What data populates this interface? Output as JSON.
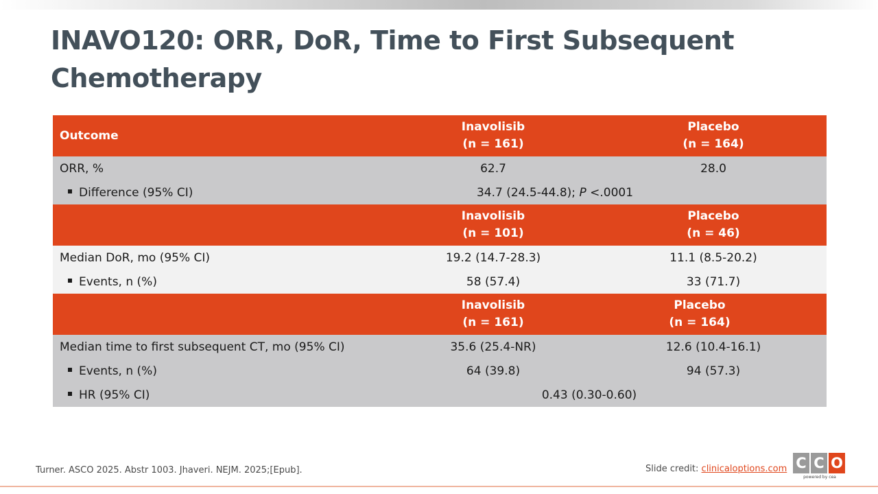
{
  "slide": {
    "title": "INAVO120: ORR, DoR, Time to First Subsequent Chemotherapy"
  },
  "table": {
    "header1": {
      "outcome": "Outcome",
      "col1_line1": "Inavolisib",
      "col1_line2": "(n = 161)",
      "col2_line1": "Placebo",
      "col2_line2": "(n = 164)"
    },
    "orr": {
      "label": "ORR, %",
      "col1": "62.7",
      "col2": "28.0"
    },
    "orr_diff": {
      "label": "Difference (95% CI)",
      "value_prefix": "34.7 (24.5-44.8); ",
      "value_p": "P",
      "value_suffix": " <.0001"
    },
    "header2": {
      "col1_line1": "Inavolisib",
      "col1_line2": "(n = 101)",
      "col2_line1": "Placebo",
      "col2_line2": "(n = 46)"
    },
    "dor": {
      "label": "Median DoR, mo (95% CI)",
      "col1": "19.2 (14.7-28.3)",
      "col2": "11.1 (8.5-20.2)"
    },
    "dor_events": {
      "label": "Events, n (%)",
      "col1": "58 (57.4)",
      "col2": "33 (71.7)"
    },
    "header3": {
      "col1_line1": "Inavolisib",
      "col1_line2": "(n = 161)",
      "col2_line1": "Placebo",
      "col2_line2": "(n = 164)"
    },
    "ttfsc": {
      "label": "Median time to first subsequent CT, mo (95% CI)",
      "col1": "35.6 (25.4-NR)",
      "col2": "12.6 (10.4-16.1)"
    },
    "ttfsc_events": {
      "label": "Events, n (%)",
      "col1": "64 (39.8)",
      "col2": "94 (57.3)"
    },
    "hr": {
      "label": "HR (95% CI)",
      "value": "0.43 (0.30-0.60)"
    }
  },
  "footer": {
    "reference": "Turner. ASCO 2025. Abstr 1003. Jhaveri. NEJM. 2025;[Epub].",
    "credit_label": "Slide credit: ",
    "credit_link": "clinicaloptions.com",
    "logo_letters": [
      "C",
      "C",
      "O"
    ],
    "logo_tagline": "powered by cea"
  },
  "colors": {
    "accent": "#e0461c",
    "title": "#43505a",
    "row_gray": "#c9c9cb",
    "row_light": "#f2f2f2"
  }
}
